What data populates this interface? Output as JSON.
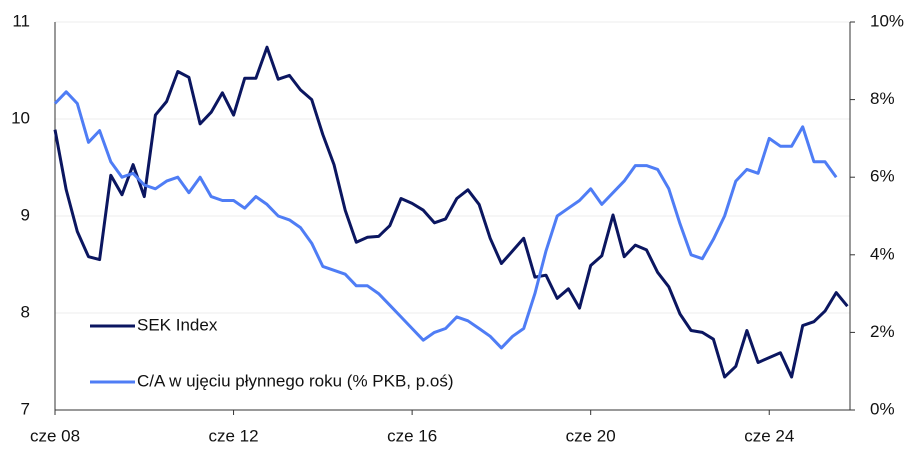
{
  "chart_data": {
    "type": "line",
    "categories": [
      "cze 08",
      null,
      null,
      null,
      null,
      null,
      null,
      null,
      null,
      null,
      null,
      null,
      null,
      null,
      null,
      null,
      "cze 12",
      null,
      null,
      null,
      null,
      null,
      null,
      null,
      null,
      null,
      null,
      null,
      null,
      null,
      null,
      null,
      "cze 16",
      null,
      null,
      null,
      null,
      null,
      null,
      null,
      null,
      null,
      null,
      null,
      null,
      null,
      null,
      null,
      "cze 20",
      null,
      null,
      null,
      null,
      null,
      null,
      null,
      null,
      null,
      null,
      null,
      null,
      null,
      null,
      null,
      "cze 24",
      null,
      null,
      null,
      null,
      null,
      null,
      null
    ],
    "series": [
      {
        "name": "SEK Index",
        "color": "#0b1660",
        "values": [
          9.89,
          9.27,
          8.84,
          8.58,
          8.55,
          9.42,
          9.22,
          9.53,
          9.2,
          10.04,
          10.18,
          10.49,
          10.43,
          9.95,
          10.07,
          10.27,
          10.04,
          10.42,
          10.42,
          10.74,
          10.41,
          10.45,
          10.3,
          10.2,
          9.84,
          9.53,
          9.06,
          8.73,
          8.78,
          8.79,
          8.9,
          9.18,
          9.13,
          9.06,
          8.93,
          8.97,
          9.18,
          9.27,
          9.12,
          8.77,
          8.51,
          8.64,
          8.77,
          8.37,
          8.39,
          8.15,
          8.25,
          8.05,
          8.49,
          8.59,
          9.01,
          8.58,
          8.7,
          8.65,
          8.42,
          8.27,
          7.99,
          7.82,
          7.8,
          7.73,
          7.34,
          7.45,
          7.82,
          7.49,
          7.54,
          7.59,
          7.34,
          7.87,
          7.91,
          8.02,
          8.21,
          8.07
        ]
      },
      {
        "name": "C/A w ujęciu płynnego roku (% PKB, p.oś)",
        "color": "#4f7df5",
        "axis": "y2",
        "values": [
          7.9,
          8.2,
          7.9,
          6.9,
          7.2,
          6.4,
          6.0,
          6.1,
          5.8,
          5.7,
          5.9,
          6.0,
          5.6,
          6.0,
          5.5,
          5.4,
          5.4,
          5.2,
          5.5,
          5.3,
          5.0,
          4.9,
          4.7,
          4.3,
          3.7,
          3.6,
          3.5,
          3.2,
          3.2,
          3.0,
          2.7,
          2.4,
          2.1,
          1.8,
          2.0,
          2.1,
          2.4,
          2.3,
          2.1,
          1.9,
          1.6,
          1.9,
          2.1,
          3.0,
          4.1,
          5.0,
          5.2,
          5.4,
          5.7,
          5.3,
          5.6,
          5.9,
          6.3,
          6.3,
          6.2,
          5.7,
          4.8,
          4.0,
          3.9,
          4.4,
          5.0,
          5.9,
          6.2,
          6.1,
          7.0,
          6.8,
          6.8,
          7.3,
          6.4,
          6.4,
          6.0,
          null
        ]
      }
    ],
    "ylim": [
      7,
      11
    ],
    "yticks": [
      7,
      8,
      9,
      10,
      11
    ],
    "y2lim": [
      0,
      10
    ],
    "y2ticks": [
      {
        "value": 0,
        "label": "0%"
      },
      {
        "value": 2,
        "label": "2%"
      },
      {
        "value": 4,
        "label": "4%"
      },
      {
        "value": 6,
        "label": "6%"
      },
      {
        "value": 8,
        "label": "8%"
      },
      {
        "value": 10,
        "label": "10%"
      }
    ],
    "grid": true,
    "legend": "lower left"
  }
}
